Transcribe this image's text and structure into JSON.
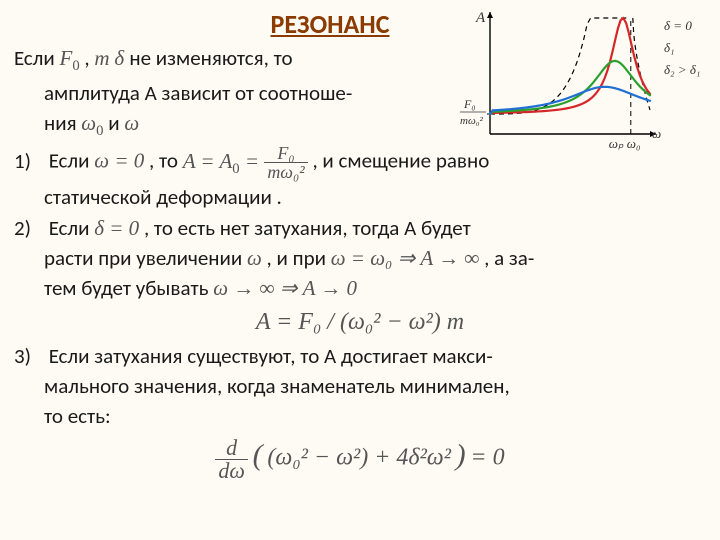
{
  "title": "РЕЗОНАНС",
  "intro": {
    "l1a": "Если ",
    "sym_F0": "F",
    "comma": " , ",
    "sym_m": "m",
    "sym_delta": " δ ",
    "l1b": " не изменяются, то",
    "l2": "амплитуда А зависит от соотноше-",
    "l3a": "ния ",
    "sym_w0": "ω",
    "l3b": " и ",
    "sym_w": "ω"
  },
  "item1": {
    "num": "1)",
    "a": "Если ",
    "cond": "ω = 0",
    "b": " , то ",
    "eqA": "A = A",
    "eq_sub": "0",
    "eq_eq": " = ",
    "frac_top": "F₀",
    "frac_bot": "mω₀²",
    "c": " , и смещение равно",
    "d": "статической деформации ."
  },
  "item2": {
    "num": "2)",
    "a": "Если ",
    "cond": "δ = 0",
    "b": ", то есть нет затухания, тогда А будет",
    "c": "расти при увеличении ",
    "sym_w": "ω",
    "d": " , и при ",
    "cond2": "ω = ω₀ ⇒ A → ∞",
    "e": " , а за-",
    "f": "тем будет убывать ",
    "cond3": "ω → ∞ ⇒ A → 0"
  },
  "formula_A": "A = F₀ / (ω₀² − ω²) m",
  "item3": {
    "num": "3)",
    "a": "Если затухания существуют, то А достигает макси-",
    "b": "мального значения, когда знаменатель минимален,",
    "c": "то есть:"
  },
  "final_formula": {
    "d_dw": "d",
    "d_dw2": "dω",
    "body": "(ω₀² − ω²)  + 4δ²ω²",
    "eq": "= 0"
  },
  "chart": {
    "ylabel": "A",
    "frac_top": "F₀",
    "frac_bot": "mω₀²",
    "xlabels": {
      "wp": "ωₚ",
      "w0": "ω₀",
      "w": "ω"
    },
    "legend": {
      "d0": "δ = 0",
      "d1": "δ₁",
      "d2": "δ₂ > δ₁"
    },
    "colors": {
      "red": "#d62728",
      "green": "#2ca02c",
      "blue": "#1f6fd4",
      "axis": "#000000",
      "dash": "#000000"
    },
    "line_width": 2.2
  }
}
